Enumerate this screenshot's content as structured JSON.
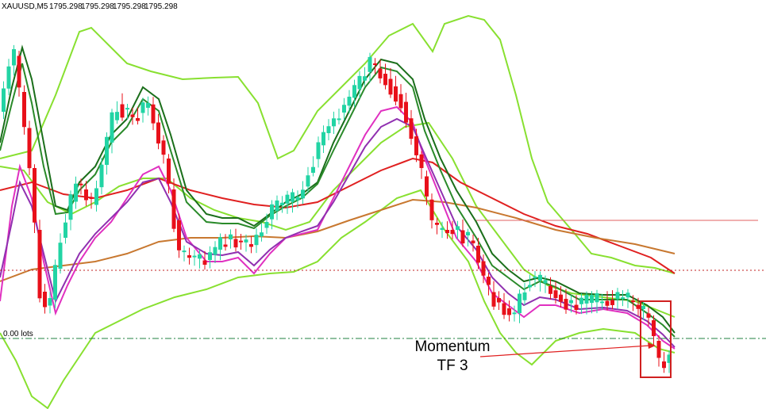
{
  "header": {
    "symbol": "XAUUSD,M5",
    "prices": [
      "1795.298",
      "1795.298",
      "1795.298",
      "1795.298"
    ]
  },
  "order_line": {
    "label": "0.00 lots"
  },
  "annotation": {
    "line1": "Momentum",
    "line2": "TF 3"
  }
}
